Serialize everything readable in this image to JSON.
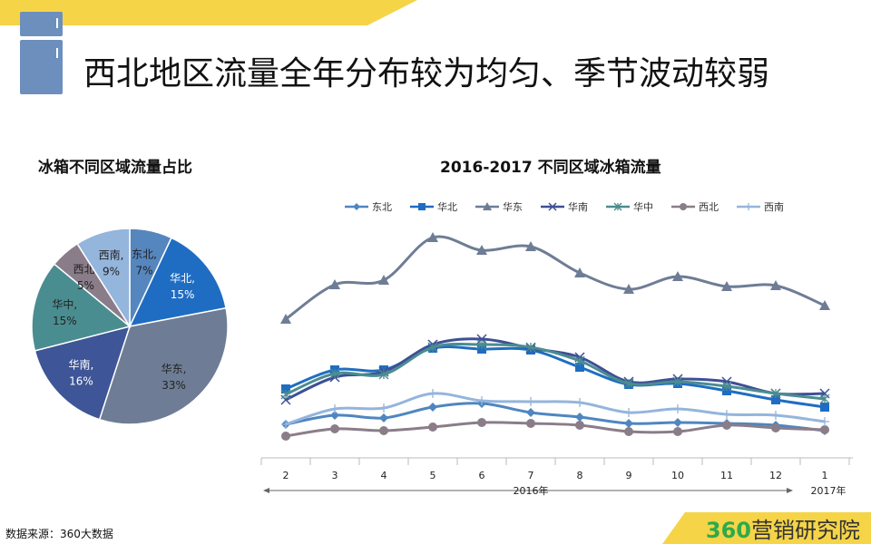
{
  "title": "西北地区流量全年分布较为均匀、季节波动较弱",
  "source": "数据来源：360大数据",
  "brand": {
    "num": "360",
    "text": "营销研究院"
  },
  "colors": {
    "banner": "#f5d447",
    "accent": "#2eaa4b",
    "fridge": "#6d8fbe"
  },
  "chart_data": [
    {
      "type": "pie",
      "title": "冰箱不同区域流量占比",
      "slices": [
        {
          "name": "东北",
          "value": 7,
          "label": "7%",
          "color": "#5686be"
        },
        {
          "name": "华北",
          "value": 15,
          "label": "15%",
          "color": "#1f6dc2"
        },
        {
          "name": "华东",
          "value": 33,
          "label": "33%",
          "color": "#6e7d95"
        },
        {
          "name": "华南",
          "value": 16,
          "label": "16%",
          "color": "#3e5597"
        },
        {
          "name": "华中",
          "value": 15,
          "label": "15%",
          "color": "#4a8d90"
        },
        {
          "name": "西北",
          "value": 5,
          "label": "5%",
          "color": "#8a7d89"
        },
        {
          "name": "西南",
          "value": 9,
          "label": "9%",
          "color": "#94b5dc"
        }
      ]
    },
    {
      "type": "line",
      "title": "2016-2017 不同区域冰箱流量",
      "categories": [
        "2",
        "3",
        "4",
        "5",
        "6",
        "7",
        "8",
        "9",
        "10",
        "11",
        "12",
        "1"
      ],
      "group_labels": [
        "2016年",
        "2017年"
      ],
      "legend": "top",
      "ylim": [
        0,
        250
      ],
      "series": [
        {
          "name": "东北",
          "marker": "diamond",
          "color": "#4f86c0",
          "values": [
            37,
            47,
            44,
            56,
            60,
            50,
            45,
            38,
            39,
            38,
            36,
            30
          ]
        },
        {
          "name": "华北",
          "marker": "square",
          "color": "#1f6dc2",
          "values": [
            76,
            97,
            97,
            121,
            120,
            119,
            100,
            81,
            82,
            74,
            64,
            56
          ]
        },
        {
          "name": "华东",
          "marker": "triangle",
          "color": "#6e7d95",
          "values": [
            153,
            191,
            196,
            243,
            229,
            233,
            204,
            186,
            200,
            189,
            190,
            168
          ]
        },
        {
          "name": "华南",
          "marker": "x",
          "color": "#3e4f97",
          "values": [
            64,
            89,
            95,
            125,
            131,
            121,
            111,
            84,
            87,
            84,
            71,
            71
          ]
        },
        {
          "name": "华中",
          "marker": "star",
          "color": "#4a8d90",
          "values": [
            70,
            93,
            92,
            122,
            125,
            122,
            107,
            82,
            84,
            79,
            71,
            65
          ]
        },
        {
          "name": "西北",
          "marker": "circle",
          "color": "#8a7d89",
          "values": [
            24,
            32,
            30,
            34,
            39,
            38,
            36,
            29,
            29,
            36,
            33,
            31
          ]
        },
        {
          "name": "西南",
          "marker": "plus",
          "color": "#94b5dc",
          "values": [
            37,
            54,
            55,
            71,
            63,
            62,
            61,
            50,
            54,
            48,
            47,
            40
          ]
        }
      ]
    }
  ]
}
